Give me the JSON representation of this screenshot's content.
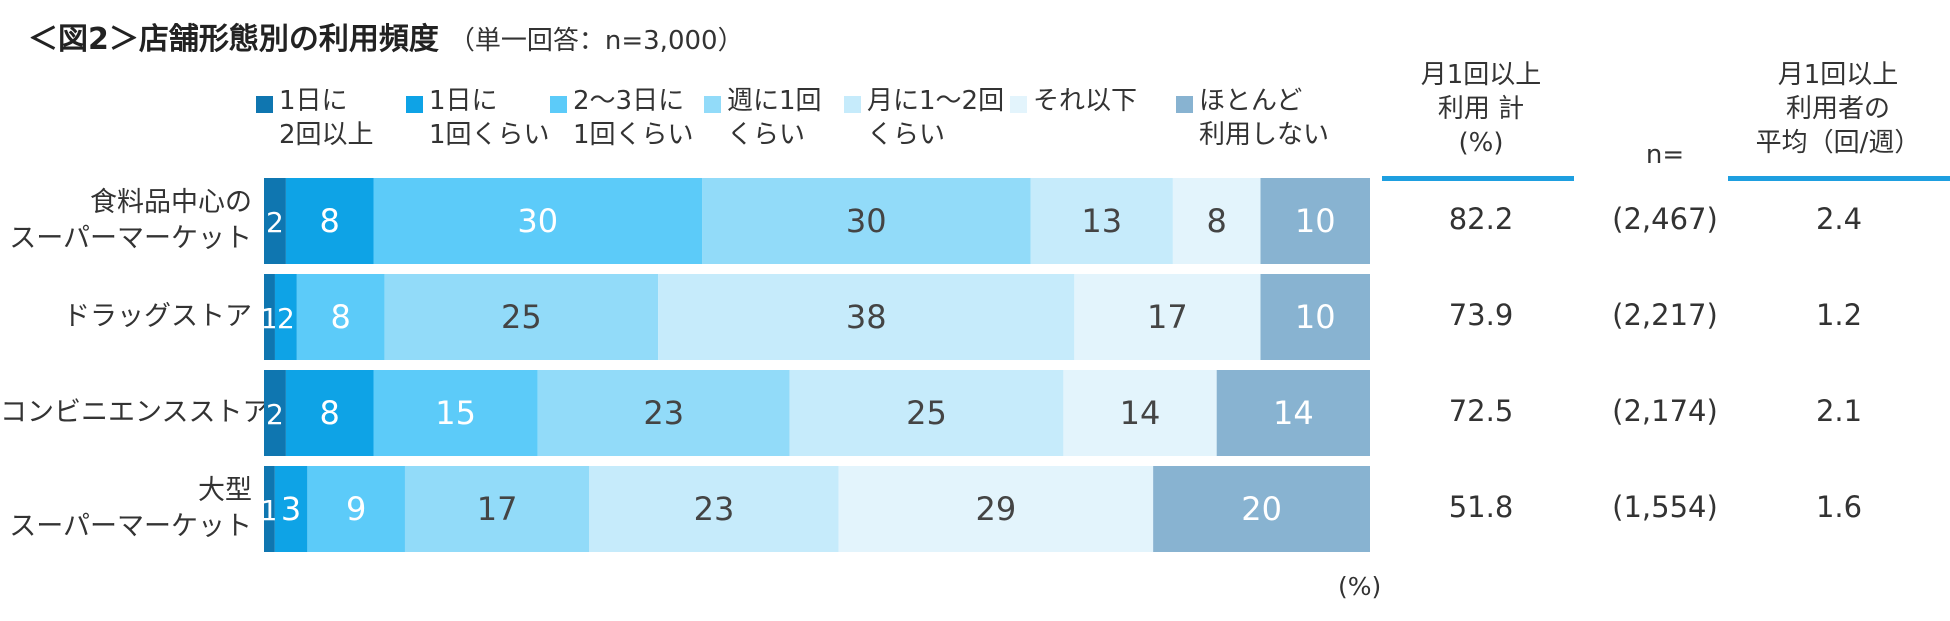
{
  "title": {
    "main": "＜図2＞店舗形態別の利用頻度",
    "sub": "（単一回答：n=3,000）"
  },
  "columns": {
    "monthly_total": "月1回以上\n利用 計\n(%)",
    "n": "n=",
    "average": "月1回以上\n利用者の\n平均（回/週）"
  },
  "unit_label": "(%)",
  "chart_data": {
    "type": "bar",
    "orientation": "horizontal",
    "stacked": true,
    "unit": "%",
    "categories": [
      "食料品中心の\nスーパーマーケット",
      "ドラッグストア",
      "コンビニエンスストア",
      "大型\nスーパーマーケット"
    ],
    "series": [
      {
        "name": "1日に\n2回以上",
        "color": "#0f76b0",
        "values": [
          2,
          1,
          2,
          1
        ]
      },
      {
        "name": "1日に\n1回くらい",
        "color": "#0ea3e6",
        "values": [
          8,
          2,
          8,
          3
        ]
      },
      {
        "name": "2〜3日に\n1回くらい",
        "color": "#5ccbf9",
        "values": [
          30,
          8,
          15,
          9
        ]
      },
      {
        "name": "週に1回\nくらい",
        "color": "#92dbf9",
        "values": [
          30,
          25,
          23,
          17
        ]
      },
      {
        "name": "月に1〜2回\nくらい",
        "color": "#c6ebfb",
        "values": [
          13,
          38,
          25,
          23
        ]
      },
      {
        "name": "それ以下",
        "color": "#e3f4fc",
        "values": [
          8,
          17,
          14,
          29
        ]
      },
      {
        "name": "ほとんど\n利用しない",
        "color": "#88b3d1",
        "values": [
          10,
          10,
          14,
          20
        ]
      }
    ],
    "monthly_total": [
      "82.2",
      "73.9",
      "72.5",
      "51.8"
    ],
    "n": [
      "(2,467)",
      "(2,217)",
      "(2,174)",
      "(1,554)"
    ],
    "average": [
      "2.4",
      "1.2",
      "2.1",
      "1.6"
    ],
    "grid": false,
    "legend": "top"
  }
}
